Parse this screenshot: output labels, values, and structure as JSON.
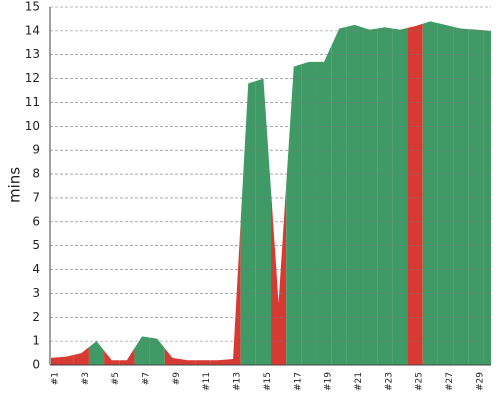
{
  "chart_data": {
    "type": "area",
    "y_label": "mins",
    "categories": [
      "#1",
      null,
      "#3",
      null,
      "#5",
      null,
      "#7",
      null,
      "#9",
      null,
      "#11",
      null,
      "#13",
      null,
      "#15",
      null,
      "#17",
      null,
      "#19",
      null,
      "#21",
      null,
      "#23",
      null,
      "#25",
      null,
      "#27",
      null,
      "#29",
      null
    ],
    "values": [
      0.3,
      0.35,
      0.5,
      1.0,
      0.2,
      0.2,
      1.2,
      1.1,
      0.3,
      0.2,
      0.2,
      0.2,
      0.25,
      11.8,
      12.0,
      2.6,
      12.5,
      12.7,
      12.7,
      14.1,
      14.25,
      14.05,
      14.15,
      14.05,
      14.2,
      14.4,
      14.25,
      14.1,
      14.05,
      14.0
    ],
    "point_colors": [
      "#d63a32",
      "#d63a32",
      "#d63a32",
      "#3f9a66",
      "#d63a32",
      "#d63a32",
      "#3f9a66",
      "#3f9a66",
      "#d63a32",
      "#d63a32",
      "#d63a32",
      "#d63a32",
      "#d63a32",
      "#3f9a66",
      "#3f9a66",
      "#d63a32",
      "#3f9a66",
      "#3f9a66",
      "#3f9a66",
      "#3f9a66",
      "#3f9a66",
      "#3f9a66",
      "#3f9a66",
      "#3f9a66",
      "#d63a32",
      "#3f9a66",
      "#3f9a66",
      "#3f9a66",
      "#3f9a66",
      "#3f9a66"
    ],
    "ylim": [
      0,
      15
    ],
    "yticks": [
      0,
      1,
      2,
      3,
      4,
      5,
      6,
      7,
      8,
      9,
      10,
      11,
      12,
      13,
      14,
      15
    ],
    "grid": true
  }
}
